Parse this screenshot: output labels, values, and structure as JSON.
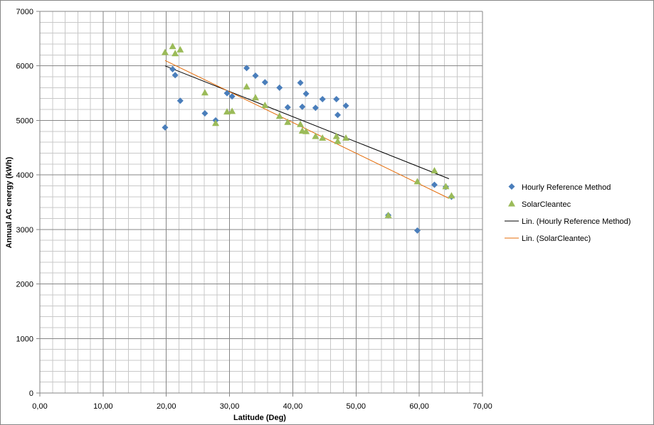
{
  "chart_data": {
    "type": "scatter",
    "title": "",
    "xlabel": "Latitude (Deg)",
    "ylabel": "Annual AC energy (kWh)",
    "xlim": [
      0,
      70
    ],
    "ylim": [
      0,
      7000
    ],
    "x_ticks": [
      0,
      10,
      20,
      30,
      40,
      50,
      60,
      70
    ],
    "x_tick_labels": [
      "0,00",
      "10,00",
      "20,00",
      "30,00",
      "40,00",
      "50,00",
      "60,00",
      "70,00"
    ],
    "y_ticks": [
      0,
      1000,
      2000,
      3000,
      4000,
      5000,
      6000,
      7000
    ],
    "y_tick_labels": [
      "0",
      "1000",
      "2000",
      "3000",
      "4000",
      "5000",
      "6000",
      "7000"
    ],
    "grid": true,
    "x_minor_step": 2,
    "y_minor_step": 200,
    "legend_position": "right",
    "series": [
      {
        "name": "Hourly Reference Method",
        "marker": "diamond",
        "color": "#4a7ebb",
        "points": [
          [
            19.8,
            4870
          ],
          [
            21.0,
            5940
          ],
          [
            21.4,
            5830
          ],
          [
            22.2,
            5360
          ],
          [
            26.1,
            5130
          ],
          [
            27.8,
            5000
          ],
          [
            29.6,
            5500
          ],
          [
            30.4,
            5440
          ],
          [
            32.7,
            5960
          ],
          [
            34.1,
            5820
          ],
          [
            35.6,
            5700
          ],
          [
            37.9,
            5600
          ],
          [
            39.2,
            5240
          ],
          [
            41.2,
            5690
          ],
          [
            41.5,
            5250
          ],
          [
            42.1,
            5490
          ],
          [
            43.6,
            5230
          ],
          [
            44.7,
            5390
          ],
          [
            46.9,
            5390
          ],
          [
            47.1,
            5100
          ],
          [
            48.4,
            5270
          ],
          [
            55.1,
            3260
          ],
          [
            59.7,
            2980
          ],
          [
            62.4,
            3820
          ],
          [
            64.2,
            3780
          ],
          [
            65.1,
            3600
          ]
        ]
      },
      {
        "name": "SolarCleantec",
        "marker": "triangle",
        "color": "#9bbb59",
        "points": [
          [
            19.8,
            6250
          ],
          [
            21.0,
            6360
          ],
          [
            21.4,
            6230
          ],
          [
            22.2,
            6300
          ],
          [
            26.1,
            5510
          ],
          [
            27.8,
            4950
          ],
          [
            29.6,
            5160
          ],
          [
            30.4,
            5170
          ],
          [
            32.7,
            5620
          ],
          [
            34.1,
            5420
          ],
          [
            35.6,
            5280
          ],
          [
            37.9,
            5080
          ],
          [
            39.2,
            4970
          ],
          [
            41.2,
            4930
          ],
          [
            41.5,
            4810
          ],
          [
            42.1,
            4800
          ],
          [
            43.6,
            4710
          ],
          [
            44.7,
            4680
          ],
          [
            46.9,
            4710
          ],
          [
            47.1,
            4620
          ],
          [
            48.4,
            4680
          ],
          [
            55.1,
            3260
          ],
          [
            59.7,
            3880
          ],
          [
            62.4,
            4080
          ],
          [
            64.2,
            3790
          ],
          [
            65.1,
            3620
          ]
        ]
      },
      {
        "name": "Lin. (Hourly Reference Method)",
        "type": "trendline",
        "color": "#000000",
        "points": [
          [
            19.8,
            6000
          ],
          [
            64.7,
            3930
          ]
        ]
      },
      {
        "name": "Lin. (SolarCleantec)",
        "type": "trendline",
        "color": "#e46c0a",
        "points": [
          [
            19.8,
            6100
          ],
          [
            64.7,
            3570
          ]
        ]
      }
    ]
  }
}
